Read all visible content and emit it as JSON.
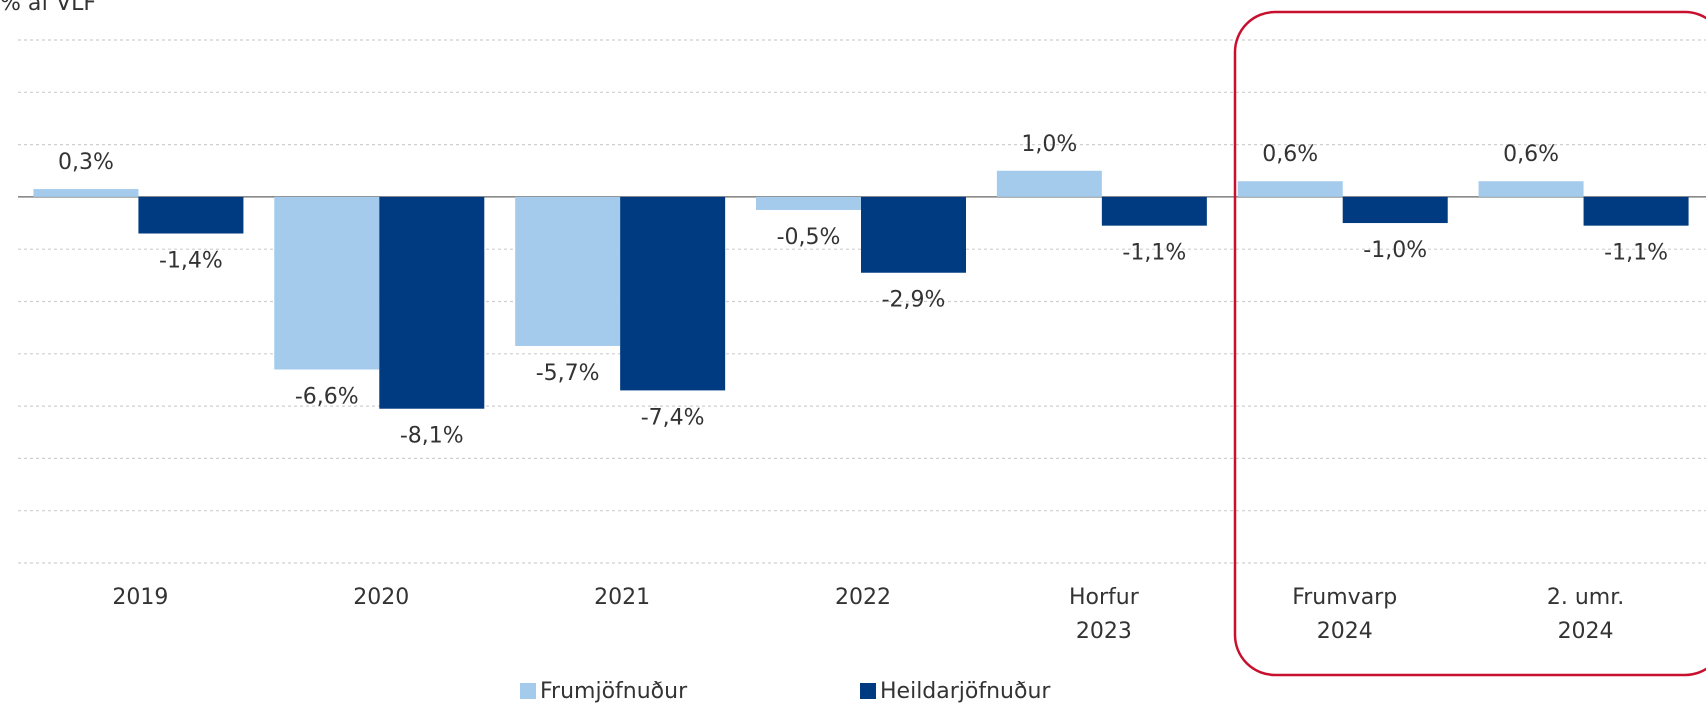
{
  "chart_data": {
    "type": "bar",
    "y_label": "% af VLF",
    "categories": [
      "2019",
      "2020",
      "2021",
      "2022",
      "Horfur\n2023",
      "Frumvarp\n2024",
      "2. umr.\n2024"
    ],
    "series": [
      {
        "name": "Frumjöfnuður",
        "color": "#a5cbec",
        "values": [
          0.3,
          -6.6,
          -5.7,
          -0.5,
          1.0,
          0.6,
          0.6
        ],
        "value_labels": [
          "0,3%",
          "-6,6%",
          "-5,7%",
          "-0,5%",
          "1,0%",
          "0,6%",
          "0,6%"
        ]
      },
      {
        "name": "Heildarjöfnuður",
        "color": "#003a80",
        "values": [
          -1.4,
          -8.1,
          -7.4,
          -2.9,
          -1.1,
          -1.0,
          -1.1
        ],
        "value_labels": [
          "-1,4%",
          "-8,1%",
          "-7,4%",
          "-2,9%",
          "-1,1%",
          "-1,0%",
          "-1,1%"
        ]
      }
    ],
    "ylim": [
      -14,
      6
    ],
    "yticks": [
      -14,
      -12,
      -10,
      -8,
      -6,
      -4,
      -2,
      0,
      2,
      4,
      6
    ],
    "grid": true
  }
}
